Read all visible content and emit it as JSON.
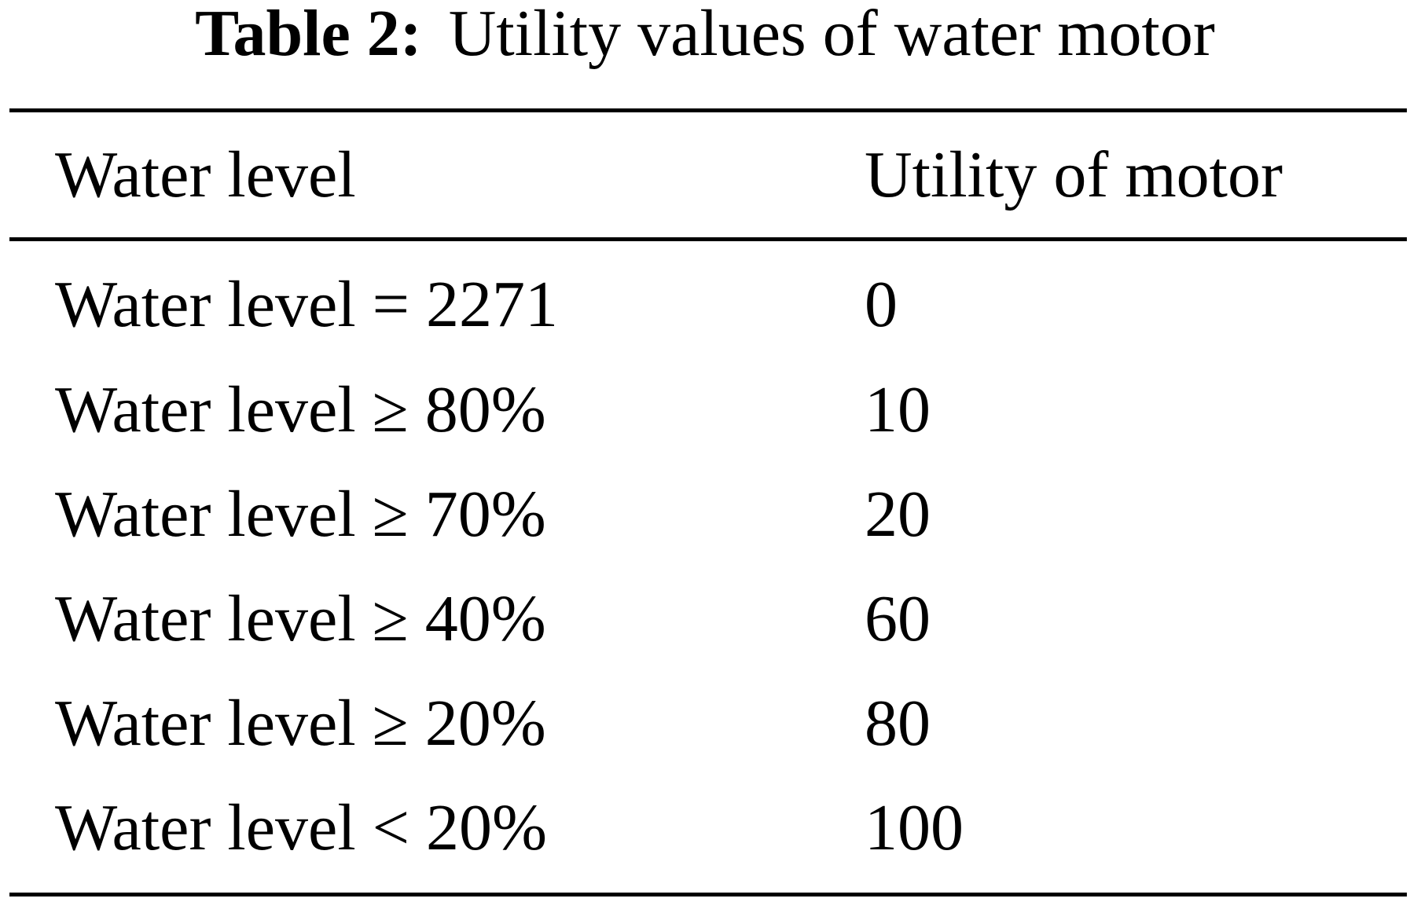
{
  "caption": {
    "label": "Table 2:",
    "text": "Utility values of water motor"
  },
  "table": {
    "headers": [
      "Water level",
      "Utility of motor"
    ],
    "rows": [
      [
        "Water level = 2271",
        "0"
      ],
      [
        "Water level ≥ 80%",
        "10"
      ],
      [
        "Water level ≥ 70%",
        "20"
      ],
      [
        "Water level ≥ 40%",
        "60"
      ],
      [
        "Water level ≥ 20%",
        "80"
      ],
      [
        "Water level < 20%",
        "100"
      ]
    ]
  }
}
